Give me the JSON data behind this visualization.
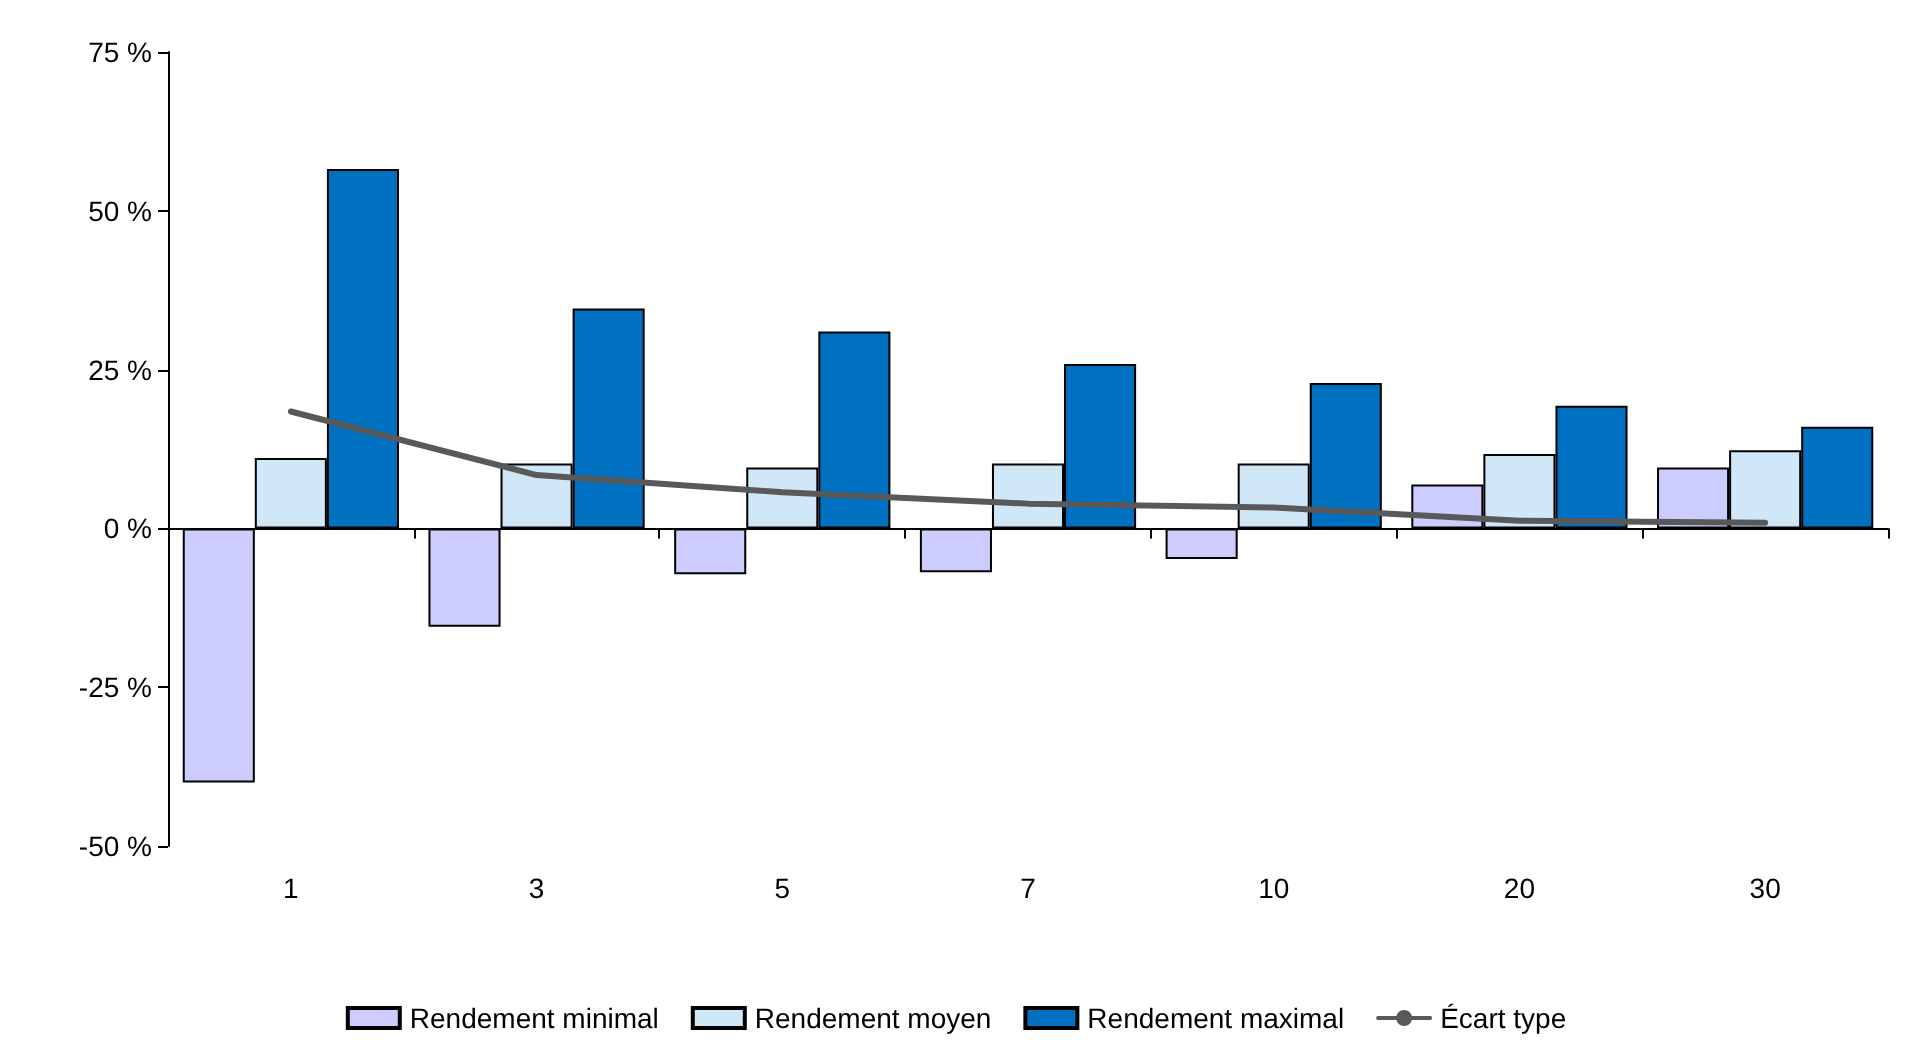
{
  "chart_data": {
    "type": "bar",
    "categories": [
      "1",
      "3",
      "5",
      "7",
      "10",
      "20",
      "30"
    ],
    "series": [
      {
        "name": "Rendement minimal",
        "color": "#ccccff",
        "values": [
          -40,
          -15.5,
          -7.2,
          -6.9,
          -4.8,
          6.9,
          9.6
        ]
      },
      {
        "name": "Rendement moyen",
        "color": "#cfe7f7",
        "values": [
          11.1,
          10.2,
          9.6,
          10.2,
          10.2,
          11.7,
          12.3
        ]
      },
      {
        "name": "Rendement maximal",
        "color": "#0070c0",
        "values": [
          56.6,
          34.6,
          31,
          25.9,
          22.9,
          19.3,
          16
        ]
      },
      {
        "name": "Écart type",
        "type": "line",
        "color": "#595959",
        "values": [
          18.4,
          8.4,
          5.7,
          3.9,
          3.3,
          1.2,
          0.9
        ]
      }
    ],
    "ylim": [
      -50,
      75
    ],
    "yticks": [
      {
        "value": -50,
        "label": "-50 %"
      },
      {
        "value": -25,
        "label": "-25 %"
      },
      {
        "value": 0,
        "label": "0 %"
      },
      {
        "value": 25,
        "label": "25 %"
      },
      {
        "value": 50,
        "label": "50 %"
      },
      {
        "value": 75,
        "label": "75 %"
      }
    ],
    "legend": "bottom",
    "marker": "none",
    "line_style": "solid"
  }
}
